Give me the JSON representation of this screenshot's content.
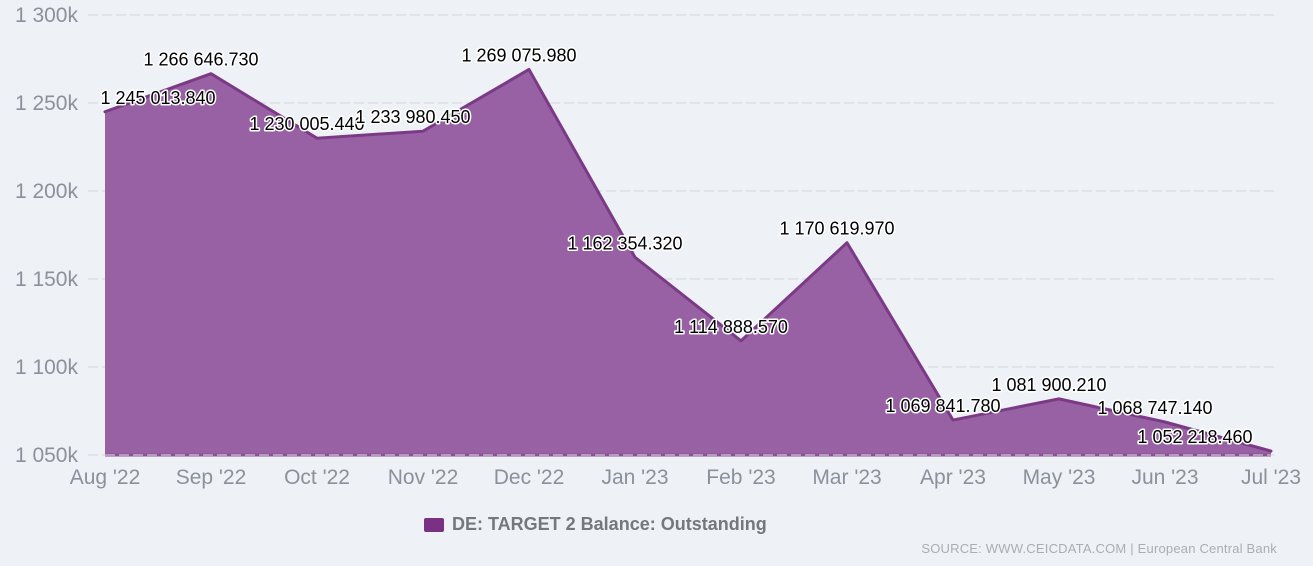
{
  "chart_data": {
    "type": "area",
    "title": "",
    "series_name": "DE: TARGET 2 Balance: Outstanding",
    "categories": [
      "Aug '22",
      "Sep '22",
      "Oct '22",
      "Nov '22",
      "Dec '22",
      "Jan '23",
      "Feb '23",
      "Mar '23",
      "Apr '23",
      "May '23",
      "Jun '23",
      "Jul '23"
    ],
    "values": [
      1245013.84,
      1266646.73,
      1230005.44,
      1233980.45,
      1269075.98,
      1162354.32,
      1114888.57,
      1170619.97,
      1069841.78,
      1081900.21,
      1068747.14,
      1052218.46
    ],
    "value_labels": [
      "1 245 013.840",
      "1 266 646.730",
      "1 230 005.440",
      "1 233 980.450",
      "1 269 075.980",
      "1 162 354.320",
      "1 114 888.570",
      "1 170 619.970",
      "1 069 841.780",
      "1 081 900.210",
      "1 068 747.140",
      "1 052 218.460"
    ],
    "ylim": [
      1050000,
      1300000
    ],
    "yticks": [
      {
        "value": 1050000,
        "label": "1 050k"
      },
      {
        "value": 1100000,
        "label": "1 100k"
      },
      {
        "value": 1150000,
        "label": "1 150k"
      },
      {
        "value": 1200000,
        "label": "1 200k"
      },
      {
        "value": 1250000,
        "label": "1 250k"
      },
      {
        "value": 1300000,
        "label": "1 300k"
      }
    ],
    "grid": "horizontal-dashed",
    "legend_position": "bottom-center",
    "colors": {
      "background": "#eef1f5",
      "fill": "#9861a4",
      "stroke": "#7b3a86",
      "baseline": "#8a5294",
      "grid": "#dcdfe4",
      "axis_text": "#8b919b",
      "label_text": "#000000",
      "legend_swatch": "#7a3184"
    }
  },
  "legend": {
    "label": "DE: TARGET 2 Balance: Outstanding"
  },
  "source": {
    "text": "SOURCE: WWW.CEICDATA.COM | European Central Bank"
  }
}
